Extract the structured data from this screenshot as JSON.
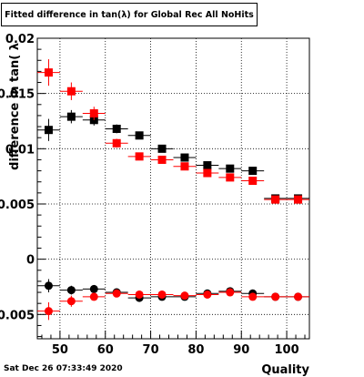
{
  "header": {
    "title": "Fitted difference in tan(λ) for Global Rec All NoHits"
  },
  "footer": {
    "date": "Sat Dec 26 07:33:49 2020"
  },
  "colors": {
    "series_black": "#000000",
    "series_red": "#ff0000",
    "grid": "#000000"
  },
  "chart_data": {
    "type": "scatter",
    "title": "Fitted difference in tan(λ) for Global Rec All NoHits",
    "xlabel": "Quality",
    "ylabel": "difference in tan( λ",
    "xlim": [
      45,
      105
    ],
    "ylim": [
      -0.0072,
      0.02
    ],
    "x_ticks": [
      50,
      60,
      70,
      80,
      90,
      100
    ],
    "x_tick_labels": [
      "50",
      "60",
      "70",
      "80",
      "90",
      "100"
    ],
    "y_ticks": [
      -0.005,
      0,
      0.005,
      0.01,
      0.015,
      0.02
    ],
    "y_tick_labels": [
      "-0.005",
      "0",
      "0.005",
      "0.01",
      "0.015",
      "0.02"
    ],
    "grid": true,
    "x_half_width": 2.5,
    "series": [
      {
        "color": "black",
        "marker": "square",
        "x": [
          47.5,
          52.5,
          57.5,
          62.5,
          67.5,
          72.5,
          77.5,
          82.5,
          87.5,
          92.5,
          97.5,
          102.5
        ],
        "y": [
          0.0117,
          0.0129,
          0.0126,
          0.0118,
          0.0112,
          0.01,
          0.0092,
          0.0085,
          0.0082,
          0.008,
          0.0055,
          0.0055
        ],
        "yerr": [
          0.001,
          0.0006,
          0.0005,
          0.0004,
          0.0003,
          0.0003,
          0.0003,
          0.0003,
          0.0003,
          0.0003,
          0.0002,
          0.0002
        ]
      },
      {
        "color": "red",
        "marker": "square",
        "x": [
          47.5,
          52.5,
          57.5,
          62.5,
          67.5,
          72.5,
          77.5,
          82.5,
          87.5,
          92.5,
          97.5,
          102.5
        ],
        "y": [
          0.0169,
          0.0152,
          0.0132,
          0.0105,
          0.0093,
          0.009,
          0.0084,
          0.0078,
          0.0074,
          0.0071,
          0.0054,
          0.0054
        ],
        "yerr": [
          0.0012,
          0.0008,
          0.0006,
          0.0004,
          0.0003,
          0.0003,
          0.0003,
          0.0003,
          0.0003,
          0.0003,
          0.0002,
          0.0002
        ]
      },
      {
        "color": "black",
        "marker": "circle",
        "x": [
          47.5,
          52.5,
          57.5,
          62.5,
          67.5,
          72.5,
          77.5,
          82.5,
          87.5,
          92.5,
          97.5,
          102.5
        ],
        "y": [
          -0.0024,
          -0.0028,
          -0.0027,
          -0.003,
          -0.0035,
          -0.0034,
          -0.0034,
          -0.0031,
          -0.0029,
          -0.0031,
          -0.0034,
          -0.0034
        ],
        "yerr": [
          0.0006,
          0.0004,
          0.0003,
          0.0002,
          0.0002,
          0.0002,
          0.0002,
          0.0002,
          0.0002,
          0.0002,
          0.0002,
          0.0002
        ]
      },
      {
        "color": "red",
        "marker": "circle",
        "x": [
          47.5,
          52.5,
          57.5,
          62.5,
          67.5,
          72.5,
          77.5,
          82.5,
          87.5,
          92.5,
          97.5,
          102.5
        ],
        "y": [
          -0.0047,
          -0.0038,
          -0.0034,
          -0.0031,
          -0.0032,
          -0.0032,
          -0.0033,
          -0.0032,
          -0.003,
          -0.0034,
          -0.0034,
          -0.0034
        ],
        "yerr": [
          0.0008,
          0.0005,
          0.0003,
          0.0002,
          0.0002,
          0.0002,
          0.0002,
          0.0002,
          0.0002,
          0.0002,
          0.0002,
          0.0002
        ]
      }
    ]
  }
}
